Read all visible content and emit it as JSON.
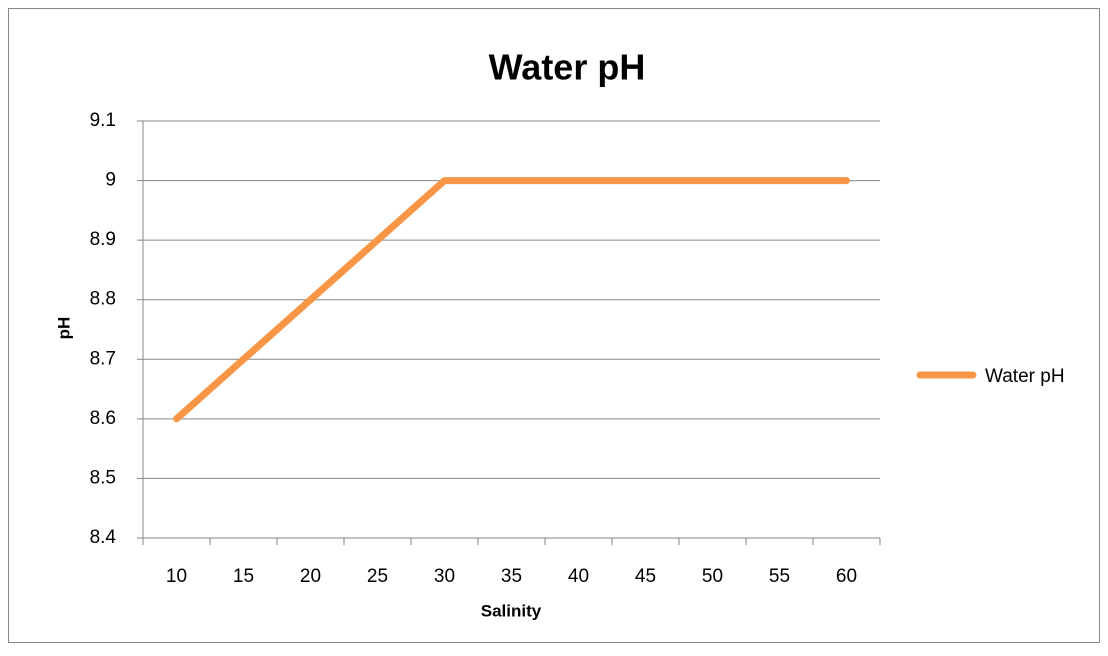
{
  "chart_data": {
    "type": "line",
    "title": "Water pH",
    "x_label": "Salinity",
    "y_label": "pH",
    "categories": [
      "10",
      "15",
      "20",
      "25",
      "30",
      "35",
      "40",
      "45",
      "50",
      "55",
      "60"
    ],
    "series": [
      {
        "name": "Water pH",
        "color": "#f79646",
        "values": [
          8.6,
          8.7,
          8.8,
          8.9,
          9,
          9,
          9,
          9,
          9,
          9,
          9
        ]
      }
    ],
    "ylim": [
      8.4,
      9.1
    ],
    "yticks": [
      8.4,
      8.5,
      8.6,
      8.7,
      8.8,
      8.9,
      9,
      9.1
    ],
    "grid": true,
    "legend": "right"
  }
}
